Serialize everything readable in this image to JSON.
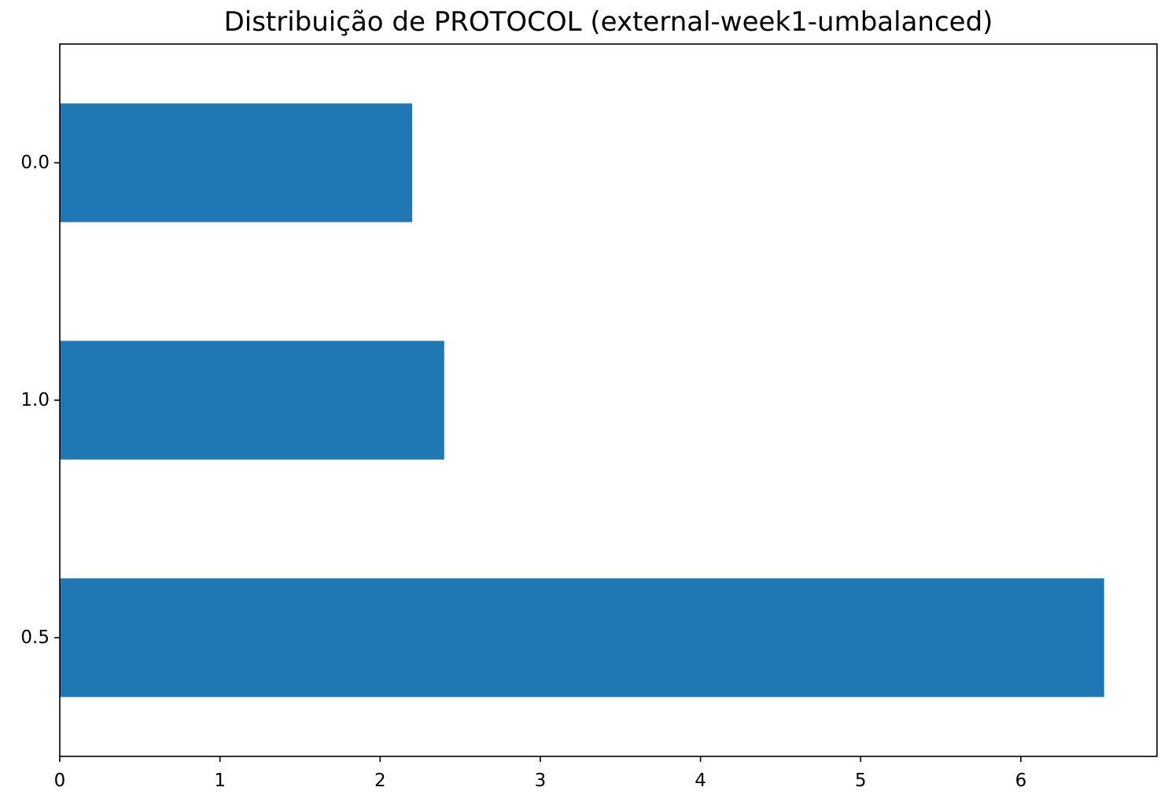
{
  "chart_data": {
    "type": "bar",
    "orientation": "horizontal",
    "title": "Distribuição de PROTOCOL (external-week1-umbalanced)",
    "xlabel": "",
    "ylabel": "",
    "categories": [
      "0.0",
      "1.0",
      "0.5"
    ],
    "values": [
      2.2,
      2.4,
      6.52
    ],
    "xlim": [
      0,
      6.85
    ],
    "xticks": [
      "0",
      "1",
      "2",
      "3",
      "4",
      "5",
      "6"
    ],
    "bar_color": "#1f77b4",
    "grid": false,
    "legend": "none"
  }
}
